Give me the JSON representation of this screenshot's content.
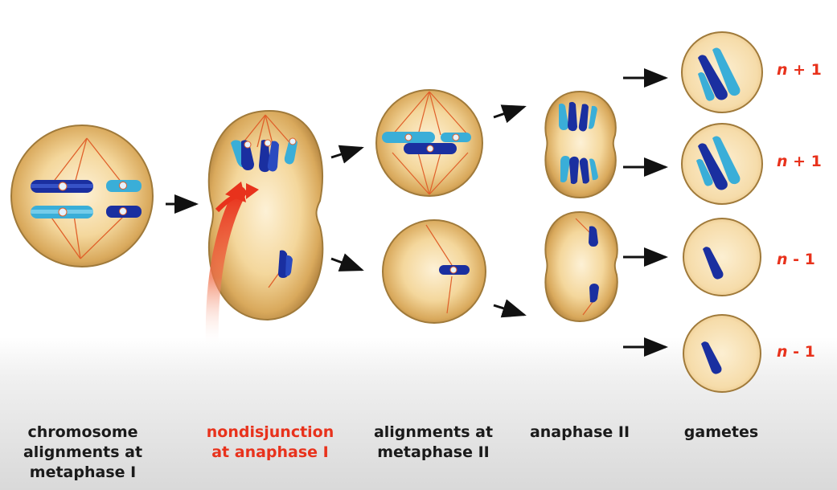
{
  "stages": [
    {
      "label": "chromosome\nalignments at\nmetaphase I"
    },
    {
      "label": "nondisjunction\nat anaphase I"
    },
    {
      "label": "alignments at\nmetaphase II"
    },
    {
      "label": "anaphase II"
    },
    {
      "label": "gametes"
    }
  ],
  "gametes": [
    {
      "n": "n",
      "suffix": " + 1"
    },
    {
      "n": "n",
      "suffix": " + 1"
    },
    {
      "n": "n",
      "suffix": " - 1"
    },
    {
      "n": "n",
      "suffix": " - 1"
    }
  ],
  "colors": {
    "highlight": "#e8321c",
    "cell_fill": "#f2d394",
    "cell_edge": "#a07a3a",
    "chromosome_dark": "#1a2fa0",
    "chromosome_light": "#3aaed8",
    "spindle": "#e0602a"
  }
}
